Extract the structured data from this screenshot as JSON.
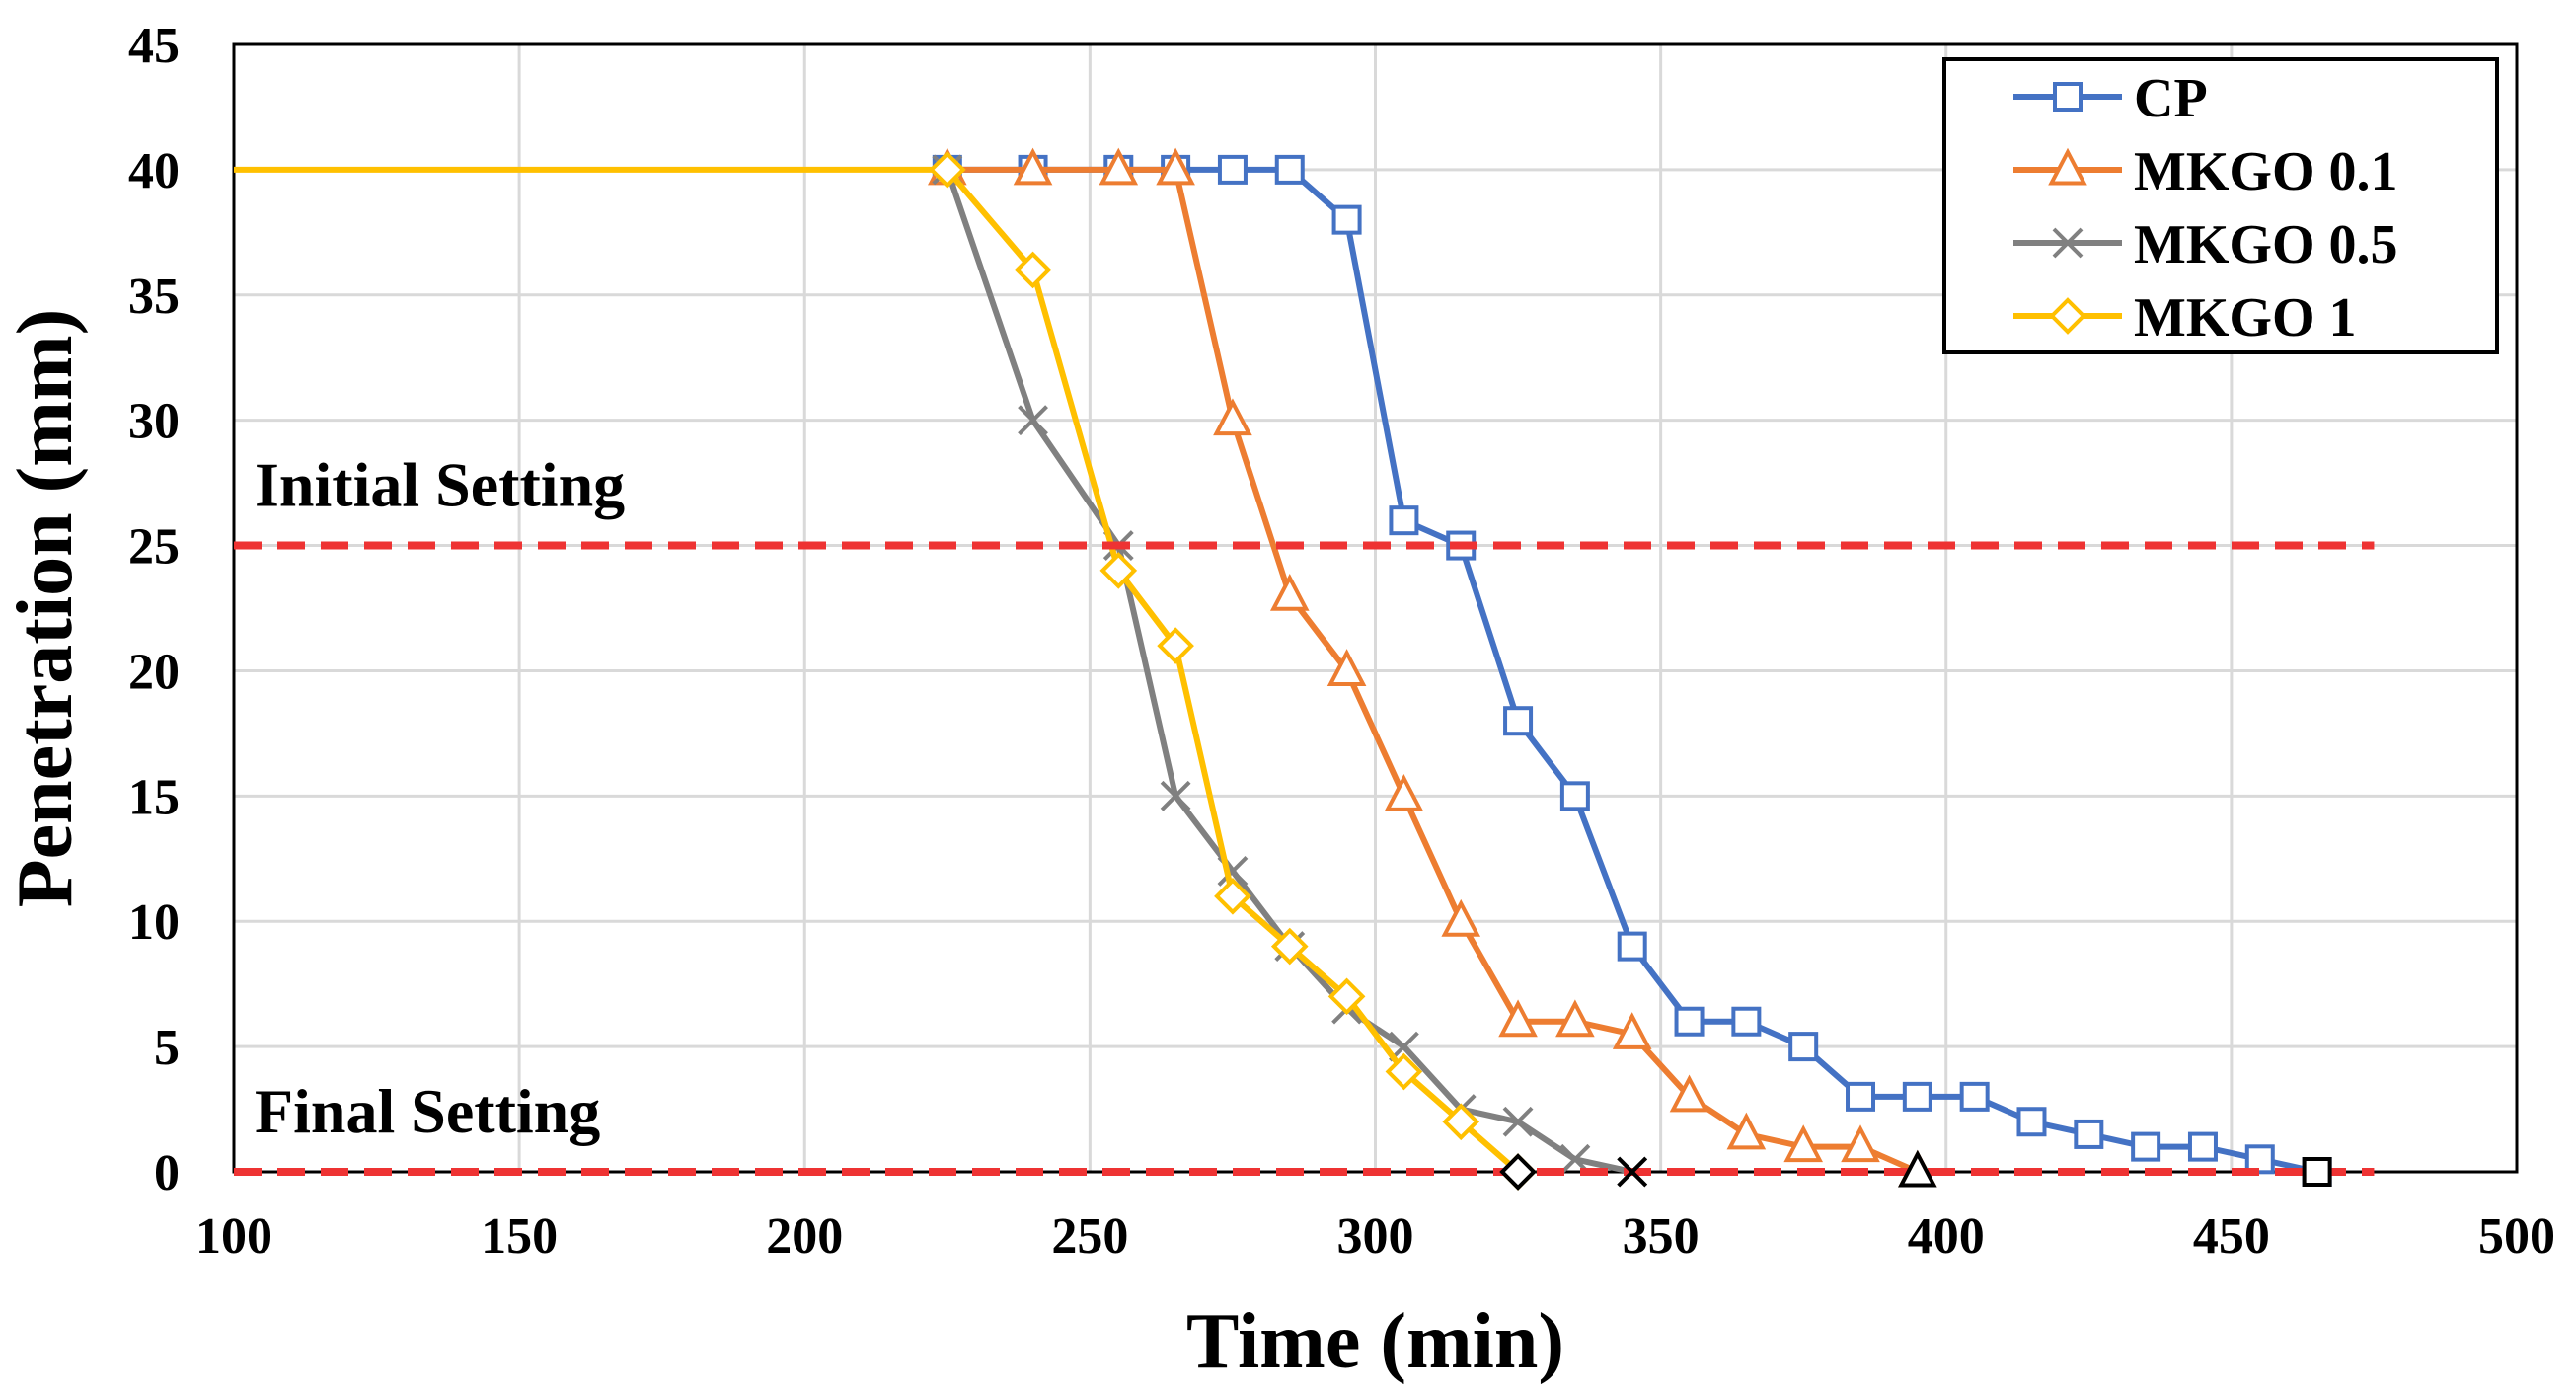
{
  "chart_data": {
    "type": "line",
    "title": "",
    "xlabel": "Time (min)",
    "ylabel": "Penetration (mm)",
    "xlim": [
      100,
      500
    ],
    "ylim": [
      0,
      45
    ],
    "xticks": [
      100,
      150,
      200,
      250,
      300,
      350,
      400,
      450,
      500
    ],
    "yticks": [
      0,
      5,
      10,
      15,
      20,
      25,
      30,
      35,
      40,
      45
    ],
    "grid": true,
    "legend_position": "top-right",
    "series": [
      {
        "name": "CP",
        "color": "#4472C4",
        "marker": "square",
        "x": [
          225,
          240,
          255,
          265,
          275,
          285,
          295,
          305,
          315,
          325,
          335,
          345,
          355,
          365,
          375,
          385,
          395,
          405,
          415,
          425,
          435,
          445,
          455,
          465
        ],
        "y": [
          40,
          40,
          40,
          40,
          40,
          40,
          38,
          26,
          25,
          18,
          15,
          9,
          6,
          6,
          5,
          3,
          3,
          3,
          2,
          1.5,
          1,
          1,
          0.5,
          0
        ]
      },
      {
        "name": "MKGO 0.1",
        "color": "#ED7D31",
        "marker": "triangle",
        "x": [
          225,
          240,
          255,
          265,
          275,
          285,
          295,
          305,
          315,
          325,
          335,
          345,
          355,
          365,
          375,
          385,
          395
        ],
        "y": [
          40,
          40,
          40,
          40,
          30,
          23,
          20,
          15,
          10,
          6,
          6,
          5.5,
          3,
          1.5,
          1,
          1,
          0
        ]
      },
      {
        "name": "MKGO 0.5",
        "color": "#808080",
        "marker": "x",
        "x": [
          225,
          240,
          255,
          265,
          275,
          285,
          295,
          305,
          315,
          325,
          335,
          345
        ],
        "y": [
          40,
          30,
          25,
          15,
          12,
          9,
          6.5,
          5,
          2.5,
          2,
          0.5,
          0
        ]
      },
      {
        "name": "MKGO 1",
        "color": "#FFC000",
        "marker": "diamond",
        "x": [
          100,
          225,
          240,
          255,
          265,
          275,
          285,
          295,
          305,
          315,
          325
        ],
        "y": [
          40,
          40,
          36,
          24,
          21,
          11,
          9,
          7,
          4,
          2,
          0
        ]
      }
    ],
    "reference_lines": [
      {
        "label": "Initial Setting",
        "y": 25,
        "x_start": 100,
        "x_end": 475,
        "color": "#EE3333"
      },
      {
        "label": "Final Setting",
        "y": 0,
        "x_start": 100,
        "x_end": 475,
        "color": "#EE3333"
      }
    ]
  }
}
